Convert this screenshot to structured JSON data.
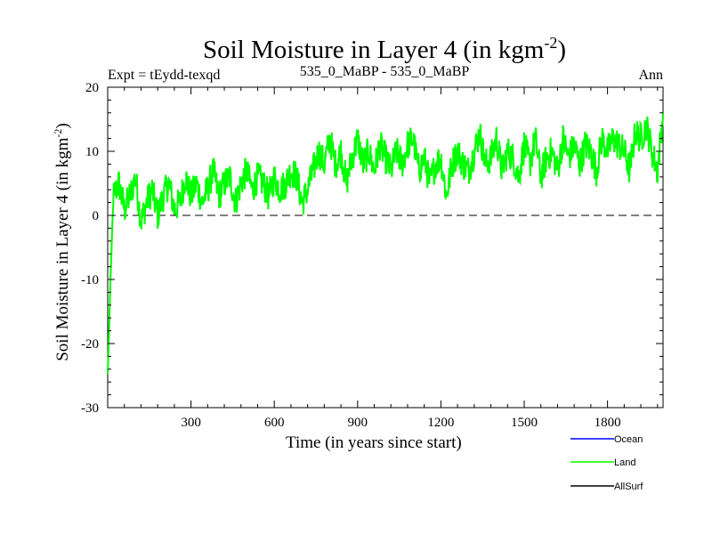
{
  "chart_data": {
    "type": "line",
    "title": "Soil Moisture in Layer 4 (in kgm",
    "title_superscript": "-2",
    "title_close": ")",
    "subtitle_left": "Expt = tEydd-texqd",
    "subtitle_center": "535_0_MaBP - 535_0_MaBP",
    "subtitle_right": "Ann",
    "xlabel": "Time (in years since start)",
    "ylabel": "Soil Moisture in Layer 4 (in kgm",
    "ylabel_superscript": "-2",
    "ylabel_close": ")",
    "xlim": [
      0,
      2000
    ],
    "ylim": [
      -30,
      20
    ],
    "xticks": [
      300,
      600,
      900,
      1200,
      1500,
      1800
    ],
    "xtick_labels": [
      "300",
      "600",
      "900",
      "1200",
      "1500",
      "1800"
    ],
    "yticks": [
      -30,
      -20,
      -10,
      0,
      10,
      20
    ],
    "ytick_labels": [
      "-30",
      "-20",
      "-10",
      "0",
      "10",
      "20"
    ],
    "zero_line": 0,
    "legend": [
      {
        "name": "Ocean",
        "color": "#0000ff"
      },
      {
        "name": "Land",
        "color": "#00ff00"
      },
      {
        "name": "AllSurf",
        "color": "#000000"
      }
    ],
    "series": [
      {
        "name": "Land",
        "color": "#00ff00",
        "x_step": 20,
        "x": [
          0,
          20,
          40,
          60,
          80,
          100,
          120,
          140,
          160,
          180,
          200,
          220,
          240,
          260,
          280,
          300,
          320,
          340,
          360,
          380,
          400,
          420,
          440,
          460,
          480,
          500,
          520,
          540,
          560,
          580,
          600,
          620,
          640,
          660,
          680,
          700,
          720,
          740,
          760,
          780,
          800,
          820,
          840,
          860,
          880,
          900,
          920,
          940,
          960,
          980,
          1000,
          1020,
          1040,
          1060,
          1080,
          1100,
          1120,
          1140,
          1160,
          1180,
          1200,
          1220,
          1240,
          1260,
          1280,
          1300,
          1320,
          1340,
          1360,
          1380,
          1400,
          1420,
          1440,
          1460,
          1480,
          1500,
          1520,
          1540,
          1560,
          1580,
          1600,
          1620,
          1640,
          1660,
          1680,
          1700,
          1720,
          1740,
          1760,
          1780,
          1800,
          1820,
          1840,
          1860,
          1880,
          1900,
          1920,
          1940,
          1960,
          1980,
          2000
        ],
        "values": [
          -25,
          3,
          5,
          1,
          3,
          6,
          -1,
          2,
          4,
          0,
          3,
          5,
          1,
          2,
          6,
          3,
          5,
          2,
          4,
          7,
          3,
          5,
          6,
          2,
          5,
          7,
          4,
          6,
          5,
          3,
          6,
          4,
          5,
          7,
          6,
          2,
          4,
          7,
          10,
          8,
          12,
          8,
          10,
          5,
          9,
          12,
          8,
          10,
          7,
          11,
          9,
          7,
          10,
          8,
          11,
          12,
          7,
          9,
          5,
          8,
          9,
          3,
          8,
          10,
          8,
          7,
          10,
          13,
          8,
          9,
          12,
          7,
          10,
          9,
          6,
          11,
          8,
          12,
          6,
          9,
          10,
          7,
          12,
          9,
          11,
          8,
          11,
          10,
          7,
          12,
          10,
          12,
          11,
          10,
          7,
          13,
          12,
          14,
          10,
          7,
          16
        ]
      }
    ]
  }
}
